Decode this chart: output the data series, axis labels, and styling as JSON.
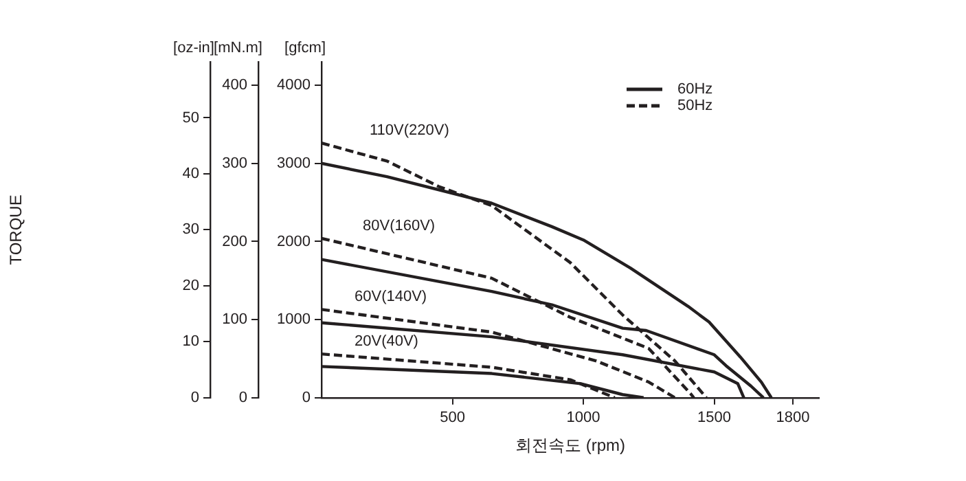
{
  "chart_data": {
    "type": "line",
    "xlabel": "회전속도 (rpm)",
    "ylabel": "[gfcm]",
    "y2label": "[mN.m]",
    "y3label": "[oz-in]",
    "xlim": [
      0,
      1900
    ],
    "xticks": [
      500,
      1000,
      1500,
      1800
    ],
    "ylim": [
      0,
      4300
    ],
    "yticks": [
      0,
      1000,
      2000,
      3000,
      4000
    ],
    "y2lim": [
      0,
      430
    ],
    "y2ticks": [
      0,
      100,
      200,
      300,
      400
    ],
    "y3lim": [
      0,
      60
    ],
    "y3ticks": [
      0,
      10,
      20,
      30,
      40,
      50
    ],
    "grid": false,
    "legend": "top right",
    "series": [
      {
        "name": "60Hz",
        "color": "#231f20",
        "line_style": "solid",
        "x": [
          0,
          250,
          650,
          880,
          1000,
          1180,
          1400,
          1480,
          1600,
          1680,
          1718
        ],
        "values": [
          3000,
          2830,
          2490,
          2190,
          2020,
          1660,
          1170,
          970,
          520,
          200,
          0
        ]
      },
      {
        "name": "50Hz",
        "color": "#231f20",
        "line_style": "dashed",
        "x": [
          0,
          250,
          450,
          650,
          950,
          1150,
          1350,
          1470
        ],
        "values": [
          3260,
          3030,
          2700,
          2460,
          1730,
          1060,
          470,
          0
        ]
      },
      {
        "color": "#231f20",
        "line_style": "solid",
        "x": [
          0,
          650,
          880,
          1150,
          1240,
          1500,
          1545,
          1640,
          1688
        ],
        "values": [
          1770,
          1360,
          1190,
          890,
          860,
          550,
          410,
          150,
          0
        ]
      },
      {
        "color": "#231f20",
        "line_style": "dashed",
        "x": [
          0,
          650,
          950,
          1250,
          1410,
          1422
        ],
        "values": [
          2040,
          1530,
          1030,
          630,
          50,
          0
        ]
      },
      {
        "color": "#231f20",
        "line_style": "solid",
        "x": [
          0,
          650,
          1150,
          1500,
          1590,
          1613
        ],
        "values": [
          960,
          780,
          550,
          330,
          180,
          0
        ]
      },
      {
        "color": "#231f20",
        "line_style": "dashed",
        "x": [
          0,
          650,
          1050,
          1250,
          1350
        ],
        "values": [
          1130,
          840,
          470,
          200,
          0
        ]
      },
      {
        "color": "#231f20",
        "line_style": "solid",
        "x": [
          0,
          650,
          990,
          1150,
          1230
        ],
        "values": [
          400,
          310,
          180,
          40,
          0
        ]
      },
      {
        "color": "#231f20",
        "line_style": "dashed",
        "x": [
          0,
          650,
          950,
          1120
        ],
        "values": [
          560,
          390,
          230,
          0
        ]
      }
    ],
    "annotations": [
      "TORQUE",
      "110V(220V)",
      "80V(160V)",
      "60V(140V)",
      "20V(40V)"
    ]
  }
}
